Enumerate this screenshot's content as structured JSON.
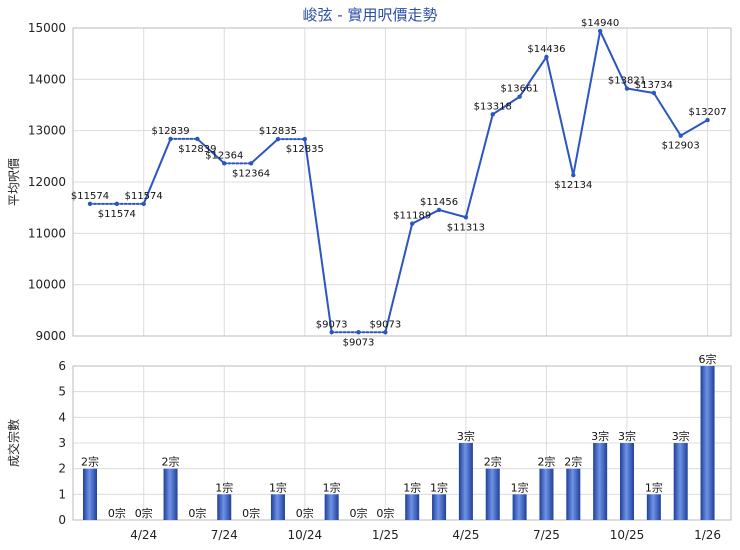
{
  "chart_data": [
    {
      "type": "line",
      "title": "峻弦 - 實用呎價走勢",
      "ylabel": "平均呎價",
      "ylim": [
        9000,
        15000
      ],
      "yticks": [
        9000,
        10000,
        11000,
        12000,
        13000,
        14000,
        15000
      ],
      "points": [
        {
          "x": 0,
          "y": 11574,
          "label": "$11574"
        },
        {
          "x": 1,
          "y": 11574,
          "label": "$11574"
        },
        {
          "x": 2,
          "y": 11574,
          "label": "$11574"
        },
        {
          "x": 3,
          "y": 12839,
          "label": "$12839"
        },
        {
          "x": 4,
          "y": 12839,
          "label": "$12839"
        },
        {
          "x": 5,
          "y": 12364,
          "label": "$12364"
        },
        {
          "x": 6,
          "y": 12364,
          "label": "$12364"
        },
        {
          "x": 7,
          "y": 12835,
          "label": "$12835"
        },
        {
          "x": 8,
          "y": 12835,
          "label": "$12835"
        },
        {
          "x": 9,
          "y": 9073,
          "label": "$9073"
        },
        {
          "x": 10,
          "y": 9073,
          "label": "$9073"
        },
        {
          "x": 11,
          "y": 9073,
          "label": "$9073"
        },
        {
          "x": 12,
          "y": 11189,
          "label": "$11189"
        },
        {
          "x": 13,
          "y": 11456,
          "label": "$11456"
        },
        {
          "x": 14,
          "y": 11313,
          "label": "$11313"
        },
        {
          "x": 15,
          "y": 13318,
          "label": "$13318"
        },
        {
          "x": 16,
          "y": 13661,
          "label": "$13661"
        },
        {
          "x": 17,
          "y": 14436,
          "label": "$14436"
        },
        {
          "x": 18,
          "y": 12134,
          "label": "$12134"
        },
        {
          "x": 19,
          "y": 14940,
          "label": "$14940"
        },
        {
          "x": 20,
          "y": 13821,
          "label": "$13821"
        },
        {
          "x": 21,
          "y": 13734,
          "label": "$13734"
        },
        {
          "x": 22,
          "y": 12903,
          "label": "$12903"
        },
        {
          "x": 23,
          "y": 13207,
          "label": "$13207"
        }
      ],
      "dotted_segments": [
        [
          0,
          1
        ],
        [
          1,
          2
        ],
        [
          3,
          4
        ],
        [
          5,
          6
        ],
        [
          7,
          8
        ],
        [
          9,
          10
        ],
        [
          10,
          11
        ]
      ],
      "line_color": "#2b55c0"
    },
    {
      "type": "bar",
      "ylabel": "成交宗數",
      "ylim": [
        0,
        6
      ],
      "yticks": [
        0,
        1,
        2,
        3,
        4,
        5,
        6
      ],
      "values": [
        2,
        0,
        0,
        2,
        0,
        1,
        0,
        1,
        0,
        1,
        0,
        0,
        1,
        1,
        3,
        2,
        1,
        2,
        2,
        3,
        3,
        1,
        3,
        6
      ],
      "bar_labels": [
        "2宗",
        "0宗",
        "0宗",
        "2宗",
        "0宗",
        "1宗",
        "0宗",
        "1宗",
        "0宗",
        "1宗",
        "0宗",
        "0宗",
        "1宗",
        "1宗",
        "3宗",
        "2宗",
        "1宗",
        "2宗",
        "2宗",
        "3宗",
        "3宗",
        "1宗",
        "3宗",
        "6宗"
      ],
      "xtick_labels": [
        {
          "x": 2,
          "label": "4/24"
        },
        {
          "x": 5,
          "label": "7/24"
        },
        {
          "x": 8,
          "label": "10/24"
        },
        {
          "x": 11,
          "label": "1/25"
        },
        {
          "x": 14,
          "label": "4/25"
        },
        {
          "x": 17,
          "label": "7/25"
        },
        {
          "x": 20,
          "label": "10/25"
        },
        {
          "x": 23,
          "label": "1/26"
        }
      ],
      "bar_color": "#3a64c8"
    }
  ]
}
